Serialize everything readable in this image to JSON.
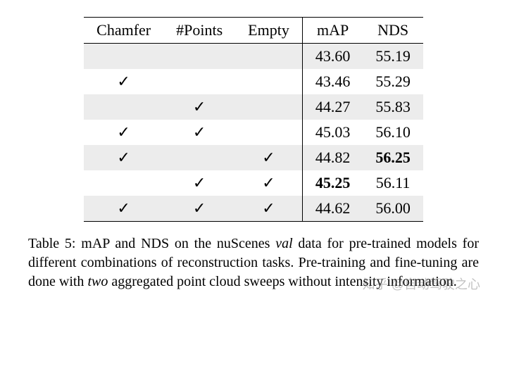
{
  "table": {
    "columns": [
      "Chamfer",
      "#Points",
      "Empty",
      "mAP",
      "NDS"
    ],
    "separator_before_col": 3,
    "checkmark_glyph": "✓",
    "rows": [
      {
        "shaded": true,
        "chamfer": false,
        "points": false,
        "empty": false,
        "map": "43.60",
        "map_bold": false,
        "nds": "55.19",
        "nds_bold": false
      },
      {
        "shaded": false,
        "chamfer": true,
        "points": false,
        "empty": false,
        "map": "43.46",
        "map_bold": false,
        "nds": "55.29",
        "nds_bold": false
      },
      {
        "shaded": true,
        "chamfer": false,
        "points": true,
        "empty": false,
        "map": "44.27",
        "map_bold": false,
        "nds": "55.83",
        "nds_bold": false
      },
      {
        "shaded": false,
        "chamfer": true,
        "points": true,
        "empty": false,
        "map": "45.03",
        "map_bold": false,
        "nds": "56.10",
        "nds_bold": false
      },
      {
        "shaded": true,
        "chamfer": true,
        "points": false,
        "empty": true,
        "map": "44.82",
        "map_bold": false,
        "nds": "56.25",
        "nds_bold": true
      },
      {
        "shaded": false,
        "chamfer": false,
        "points": true,
        "empty": true,
        "map": "45.25",
        "map_bold": true,
        "nds": "56.11",
        "nds_bold": false
      },
      {
        "shaded": true,
        "chamfer": true,
        "points": true,
        "empty": true,
        "map": "44.62",
        "map_bold": false,
        "nds": "56.00",
        "nds_bold": false
      }
    ]
  },
  "caption": {
    "label": "Table 5:",
    "text_before_val": " mAP and NDS on the nuScenes ",
    "val_word": "val",
    "text_mid": " data for pre-trained models for different combinations of reconstruction tasks. Pre-training and fine-tuning are done with ",
    "two_word": "two",
    "text_after": " aggregated point cloud sweeps without intensity information."
  },
  "watermark": "知乎 @自动驾驶之心"
}
